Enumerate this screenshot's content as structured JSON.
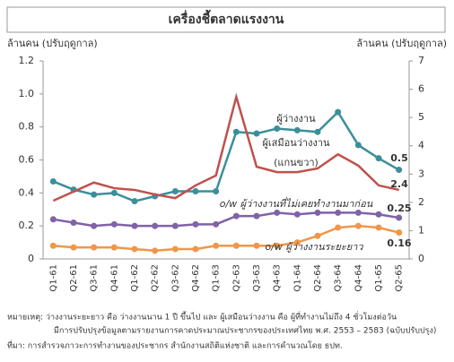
{
  "chart_data": {
    "type": "line",
    "title": "เครื่องชี้ตลาดแรงงาน",
    "y_label": "ล้านคน (ปรับฤดูกาล)",
    "y2_label": "ล้านคน (ปรับฤดูกาล)",
    "categories": [
      "Q1-61",
      "Q2-61",
      "Q3-61",
      "Q4-61",
      "Q1-62",
      "Q2-62",
      "Q3-62",
      "Q4-62",
      "Q1-63",
      "Q2-63",
      "Q3-63",
      "Q4-63",
      "Q1-64",
      "Q2-64",
      "Q3-64",
      "Q4-64",
      "Q1-65",
      "Q2-65"
    ],
    "ylim": [
      0,
      1.2
    ],
    "yticks": [
      0,
      0.2,
      0.4,
      0.6,
      0.8,
      {
        "value": 1,
        "label": "1.0"
      },
      1.2
    ],
    "y2lim": [
      0,
      7
    ],
    "y2ticks": [
      0,
      1,
      2,
      3,
      4,
      5,
      6,
      7
    ],
    "series": [
      {
        "name": "ผู้ว่างงาน",
        "color": "#3a8f9a",
        "values": [
          0.47,
          0.42,
          0.39,
          0.4,
          0.35,
          0.38,
          0.41,
          0.41,
          0.41,
          0.77,
          0.76,
          0.79,
          0.78,
          0.77,
          0.89,
          0.69,
          0.61,
          0.54
        ],
        "value_labels": [
          null,
          null,
          null,
          null,
          null,
          null,
          null,
          null,
          null,
          null,
          null,
          null,
          null,
          null,
          null,
          null,
          null,
          "0.5"
        ]
      },
      {
        "name": "ผู้เสมือนว่างงาน",
        "note": "(แกนขวา)",
        "color": "#c0504d",
        "axis": "y2",
        "values": [
          2.06,
          2.38,
          2.7,
          2.5,
          2.44,
          2.28,
          2.15,
          2.6,
          2.95,
          5.73,
          3.26,
          3.07,
          3.07,
          3.2,
          3.7,
          3.3,
          2.6,
          2.44
        ],
        "value_labels": [
          null,
          null,
          null,
          null,
          null,
          null,
          null,
          null,
          null,
          null,
          null,
          null,
          null,
          null,
          null,
          null,
          null,
          "2.4"
        ]
      },
      {
        "name": "o/w ผู้ว่างงานที่ไม่เคยทำงานมาก่อน",
        "color": "#7f62a8",
        "values": [
          0.24,
          0.22,
          0.2,
          0.21,
          0.2,
          0.2,
          0.2,
          0.21,
          0.21,
          0.26,
          0.26,
          0.28,
          0.27,
          0.28,
          0.28,
          0.28,
          0.27,
          0.25
        ],
        "value_labels": [
          null,
          null,
          null,
          null,
          null,
          null,
          null,
          null,
          null,
          null,
          null,
          null,
          null,
          null,
          null,
          null,
          null,
          "0.25"
        ]
      },
      {
        "name": "o/w ผู้ว่างงานระยะยาว",
        "color": "#f0964a",
        "values": [
          0.08,
          0.07,
          0.07,
          0.07,
          0.06,
          0.05,
          0.06,
          0.06,
          0.08,
          0.08,
          0.08,
          0.08,
          0.1,
          0.14,
          0.19,
          0.2,
          0.19,
          0.16
        ],
        "value_labels": [
          null,
          null,
          null,
          null,
          null,
          null,
          null,
          null,
          null,
          null,
          null,
          null,
          null,
          null,
          null,
          null,
          null,
          "0.16"
        ]
      }
    ],
    "notes": [
      "หมายเหตุ: ว่างงานระยะยาว คือ ว่างงานนาน 1 ปี ขึ้นไป และ ผู้เสมือนว่างงาน คือ ผู้ที่ทำงานไม่ถึง 4 ชั่วโมงต่อวัน",
      "มีการปรับปรุงข้อมูลตามรายงานการคาดประมาณประชากรของประเทศไทย พ.ศ. 2553 – 2583 (ฉบับปรับปรุง)",
      "ที่มา: การสำรวจภาวะการทำงานของประชากร สำนักงานสถิติแห่งชาติ และการคำนวณโดย ธปท."
    ]
  }
}
